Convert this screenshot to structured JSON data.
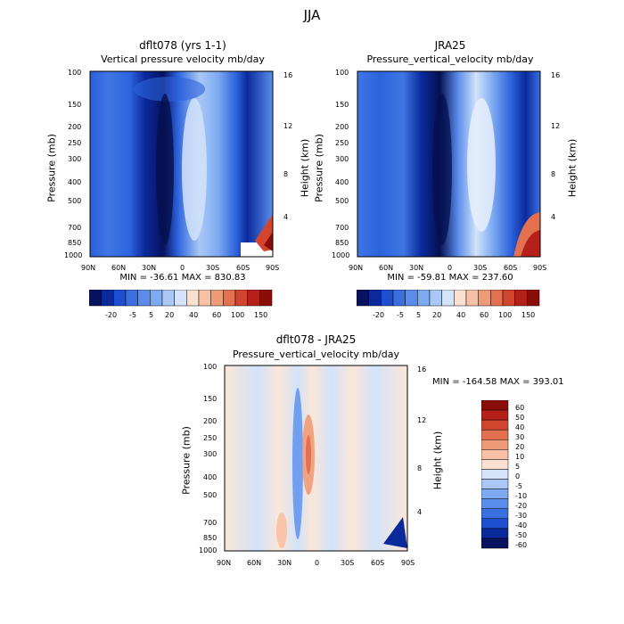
{
  "figure": {
    "title": "JJA"
  },
  "colors": {
    "scale_a": [
      "#08125e",
      "#0a2a9c",
      "#1d4fd0",
      "#3a6fe0",
      "#5a8cec",
      "#7eaaf2",
      "#a9c8f6",
      "#d2e3fa",
      "#fbe0d0",
      "#f8c0a4",
      "#f09b78",
      "#e3704f",
      "#d1442e",
      "#b5201a",
      "#8b0d0a"
    ],
    "scale_b": [
      "#08125e",
      "#0a2a9c",
      "#1d4fd0",
      "#3a6fe0",
      "#5a8cec",
      "#7eaaf2",
      "#a9c8f6",
      "#d2e3fa",
      "#fbe0d0",
      "#f8c0a4",
      "#f09b78",
      "#e3704f",
      "#d1442e",
      "#b5201a",
      "#8b0d0a"
    ]
  },
  "chart_data": [
    {
      "type": "heatmap",
      "title": "dflt078 (yrs 1-1)",
      "subtitle": "Vertical pressure velocity   mb/day",
      "ylabel": "Pressure (mb)",
      "ylabel_right": "Height (km)",
      "xticks": [
        "90N",
        "60N",
        "30N",
        "0",
        "30S",
        "60S",
        "90S"
      ],
      "yticks": [
        "100",
        "150",
        "200",
        "250",
        "300",
        "400",
        "500",
        "700",
        "850",
        "1000"
      ],
      "yticks_right": [
        "16",
        "12",
        "8",
        "4"
      ],
      "stats": "MIN = -36.61   MAX = 830.83",
      "colorbar_labels": [
        "-20",
        "-5",
        "5",
        "20",
        "40",
        "60",
        "100",
        "150"
      ],
      "xlim": [
        "90N",
        "90S"
      ],
      "ylim": [
        1000,
        100
      ]
    },
    {
      "type": "heatmap",
      "title": "JRA25",
      "subtitle": "Pressure_vertical_velocity   mb/day",
      "ylabel": "Pressure (mb)",
      "ylabel_right": "Height (km)",
      "xticks": [
        "90N",
        "60N",
        "30N",
        "0",
        "30S",
        "60S",
        "90S"
      ],
      "yticks": [
        "100",
        "150",
        "200",
        "250",
        "300",
        "400",
        "500",
        "700",
        "850",
        "1000"
      ],
      "yticks_right": [
        "16",
        "12",
        "8",
        "4"
      ],
      "stats": "MIN = -59.81   MAX = 237.60",
      "colorbar_labels": [
        "-20",
        "-5",
        "5",
        "20",
        "40",
        "60",
        "100",
        "150"
      ],
      "xlim": [
        "90N",
        "90S"
      ],
      "ylim": [
        1000,
        100
      ]
    },
    {
      "type": "heatmap",
      "title": "dflt078 - JRA25",
      "subtitle": "Pressure_vertical_velocity   mb/day",
      "ylabel": "Pressure (mb)",
      "ylabel_right": "Height (km)",
      "xticks": [
        "90N",
        "60N",
        "30N",
        "0",
        "30S",
        "60S",
        "90S"
      ],
      "yticks": [
        "100",
        "150",
        "200",
        "250",
        "300",
        "400",
        "500",
        "700",
        "850",
        "1000"
      ],
      "yticks_right": [
        "16",
        "12",
        "8",
        "4"
      ],
      "stats": "MIN = -164.58   MAX = 393.01",
      "colorbar_labels": [
        "60",
        "50",
        "40",
        "30",
        "20",
        "10",
        "5",
        "0",
        "-5",
        "-10",
        "-20",
        "-30",
        "-40",
        "-50",
        "-60"
      ],
      "xlim": [
        "90N",
        "90S"
      ],
      "ylim": [
        1000,
        100
      ]
    }
  ]
}
